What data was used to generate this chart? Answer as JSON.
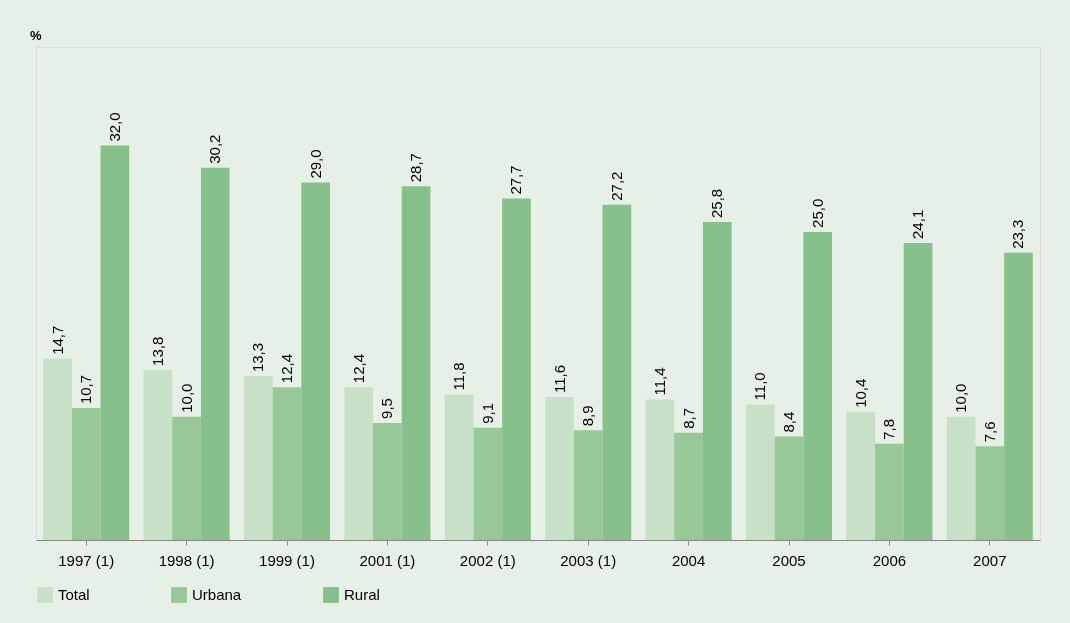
{
  "chart_data": {
    "type": "bar",
    "annotations": [
      "%"
    ],
    "categories": [
      "1997 (1)",
      "1998 (1)",
      "1999 (1)",
      "2001 (1)",
      "2002 (1)",
      "2003 (1)",
      "2004",
      "2005",
      "2006",
      "2007"
    ],
    "series": [
      {
        "name": "Total",
        "color": "#c8e0c8",
        "values": [
          14.7,
          13.8,
          13.3,
          12.4,
          11.8,
          11.6,
          11.4,
          11.0,
          10.4,
          10.0
        ],
        "value_labels": [
          "14,7",
          "13,8",
          "13,3",
          "12,4",
          "11,8",
          "11,6",
          "11,4",
          "11,0",
          "10,4",
          "10,0"
        ]
      },
      {
        "name": "Urbana",
        "color": "#98c898",
        "values": [
          10.7,
          10.0,
          12.4,
          9.5,
          9.1,
          8.9,
          8.7,
          8.4,
          7.8,
          7.6
        ],
        "value_labels": [
          "10,7",
          "10,0",
          "12,4",
          "9,5",
          "9,1",
          "8,9",
          "8,7",
          "8,4",
          "7,8",
          "7,6"
        ]
      },
      {
        "name": "Rural",
        "color": "#88c08c",
        "values": [
          32.0,
          30.2,
          29.0,
          28.7,
          27.7,
          27.2,
          25.8,
          25.0,
          24.1,
          23.3
        ],
        "value_labels": [
          "32,0",
          "30,2",
          "29,0",
          "28,7",
          "27,7",
          "27,2",
          "25,8",
          "25,0",
          "24,1",
          "23,3"
        ]
      }
    ],
    "legend": "bottom",
    "grid": false
  }
}
